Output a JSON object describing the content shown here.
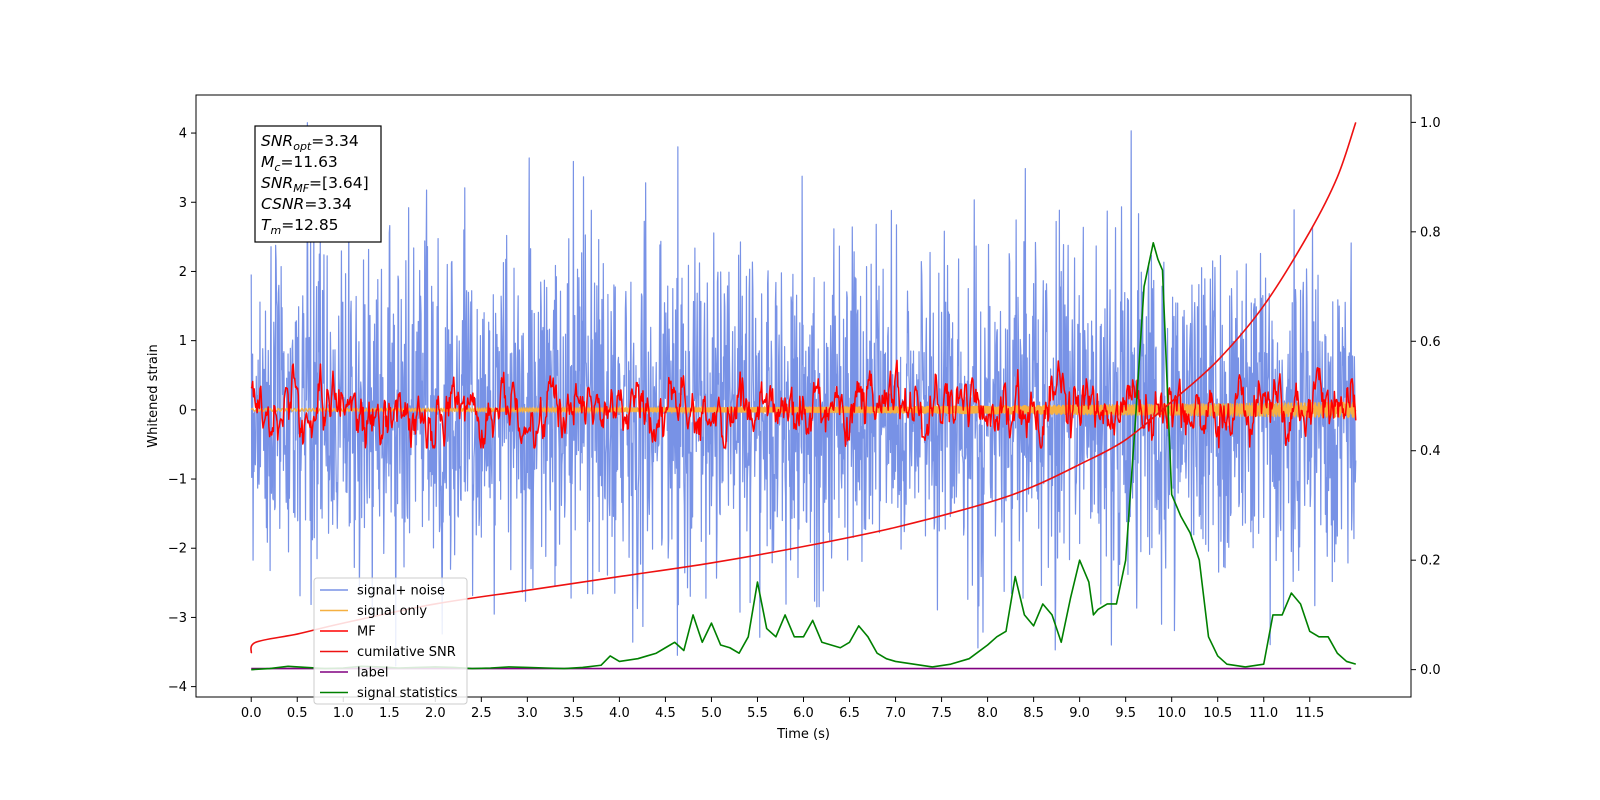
{
  "chart_data": {
    "type": "line",
    "xlabel": "Time (s)",
    "ylabel": "Whitened strain",
    "xlim": [
      -0.6,
      12.6
    ],
    "ylim": [
      -4.15,
      4.55
    ],
    "y2lim": [
      -0.05,
      1.05
    ],
    "x_ticks": [
      0.0,
      0.5,
      1.0,
      1.5,
      2.0,
      2.5,
      3.0,
      3.5,
      4.0,
      4.5,
      5.0,
      5.5,
      6.0,
      6.5,
      7.0,
      7.5,
      8.0,
      8.5,
      9.0,
      9.5,
      10.0,
      10.5,
      11.0,
      11.5
    ],
    "x_tick_labels": [
      "0.0",
      "0.5",
      "1.0",
      "1.5",
      "2.0",
      "2.5",
      "3.0",
      "3.5",
      "4.0",
      "4.5",
      "5.0",
      "5.5",
      "6.0",
      "6.5",
      "7.0",
      "7.5",
      "8.0",
      "8.5",
      "9.0",
      "9.5",
      "10.0",
      "10.5",
      "11.0",
      "11.5"
    ],
    "y_ticks": [
      -4,
      -3,
      -2,
      -1,
      0,
      1,
      2,
      3,
      4
    ],
    "y_tick_labels": [
      "−4",
      "−3",
      "−2",
      "−1",
      "0",
      "1",
      "2",
      "3",
      "4"
    ],
    "y2_ticks": [
      0.0,
      0.2,
      0.4,
      0.6,
      0.8,
      1.0
    ],
    "y2_tick_labels": [
      "0.0",
      "0.2",
      "0.4",
      "0.6",
      "0.8",
      "1.0"
    ],
    "grid": false,
    "legend_placement": "lower-left",
    "series": [
      {
        "name": "signal+ noise",
        "axis": "left",
        "color": "#7892e6",
        "style": "dense noise band",
        "x_range": [
          0.0,
          12.0
        ],
        "approx_extent": [
          -3.7,
          4.15
        ]
      },
      {
        "name": "signal only",
        "axis": "left",
        "color": "#f5b041",
        "style": "small chirp near zero",
        "x_range": [
          0.0,
          12.0
        ],
        "approx_amplitude_start": 0.02,
        "approx_amplitude_end": 0.12
      },
      {
        "name": "MF",
        "axis": "left",
        "color": "#ff0000",
        "style": "noisy trace around zero",
        "x_range": [
          0.0,
          12.0
        ],
        "approx_extent": [
          -0.55,
          0.93
        ]
      },
      {
        "name": "cumilative SNR",
        "axis": "right",
        "color": "#ee1111",
        "style": "smooth rising curve",
        "x": [
          0.0,
          0.05,
          0.5,
          1.0,
          2.0,
          3.0,
          4.0,
          5.0,
          6.0,
          7.0,
          8.0,
          8.5,
          9.0,
          9.5,
          10.0,
          10.5,
          11.0,
          11.5,
          11.8,
          12.0
        ],
        "y": [
          0.03,
          0.05,
          0.065,
          0.085,
          0.12,
          0.145,
          0.17,
          0.195,
          0.225,
          0.26,
          0.305,
          0.335,
          0.375,
          0.42,
          0.49,
          0.565,
          0.665,
          0.8,
          0.9,
          1.0
        ]
      },
      {
        "name": "label",
        "axis": "right",
        "color": "#800080",
        "style": "flat line",
        "x": [
          0.0,
          11.95
        ],
        "y": [
          0.002,
          0.002
        ]
      },
      {
        "name": "signal statistics",
        "axis": "right",
        "color": "#008000",
        "style": "line",
        "x": [
          0.0,
          0.2,
          0.4,
          0.6,
          0.8,
          1.0,
          1.2,
          1.4,
          1.6,
          1.8,
          2.0,
          2.2,
          2.4,
          2.6,
          2.8,
          3.0,
          3.2,
          3.4,
          3.6,
          3.8,
          3.9,
          4.0,
          4.2,
          4.3,
          4.4,
          4.5,
          4.6,
          4.7,
          4.8,
          4.9,
          5.0,
          5.1,
          5.2,
          5.3,
          5.4,
          5.5,
          5.6,
          5.7,
          5.8,
          5.9,
          6.0,
          6.1,
          6.2,
          6.3,
          6.4,
          6.5,
          6.6,
          6.7,
          6.8,
          6.9,
          7.0,
          7.2,
          7.4,
          7.6,
          7.8,
          8.0,
          8.1,
          8.2,
          8.3,
          8.4,
          8.5,
          8.6,
          8.7,
          8.8,
          8.9,
          9.0,
          9.1,
          9.15,
          9.2,
          9.3,
          9.4,
          9.5,
          9.6,
          9.7,
          9.8,
          9.85,
          9.9,
          10.0,
          10.1,
          10.2,
          10.3,
          10.4,
          10.5,
          10.6,
          10.8,
          11.0,
          11.1,
          11.2,
          11.3,
          11.4,
          11.5,
          11.6,
          11.7,
          11.8,
          11.9,
          12.0
        ],
        "y": [
          0.0,
          0.002,
          0.006,
          0.004,
          0.002,
          0.003,
          0.006,
          0.005,
          0.003,
          0.004,
          0.005,
          0.004,
          0.002,
          0.003,
          0.005,
          0.004,
          0.003,
          0.002,
          0.004,
          0.008,
          0.025,
          0.015,
          0.02,
          0.025,
          0.03,
          0.04,
          0.05,
          0.035,
          0.1,
          0.05,
          0.085,
          0.045,
          0.04,
          0.03,
          0.06,
          0.16,
          0.075,
          0.06,
          0.1,
          0.06,
          0.06,
          0.09,
          0.05,
          0.045,
          0.04,
          0.05,
          0.08,
          0.06,
          0.03,
          0.02,
          0.015,
          0.01,
          0.005,
          0.01,
          0.02,
          0.045,
          0.06,
          0.07,
          0.17,
          0.1,
          0.08,
          0.12,
          0.1,
          0.05,
          0.13,
          0.2,
          0.16,
          0.1,
          0.11,
          0.12,
          0.12,
          0.2,
          0.44,
          0.7,
          0.78,
          0.75,
          0.73,
          0.32,
          0.28,
          0.25,
          0.2,
          0.06,
          0.025,
          0.01,
          0.005,
          0.01,
          0.1,
          0.1,
          0.14,
          0.12,
          0.07,
          0.06,
          0.06,
          0.03,
          0.015,
          0.01
        ]
      }
    ],
    "annotation": [
      {
        "base": "SNR",
        "sub": "opt",
        "value": "=3.34"
      },
      {
        "base": "M",
        "sub": "c",
        "value": "=11.63"
      },
      {
        "base": "SNR",
        "sub": "MF",
        "value": "=[3.64]"
      },
      {
        "base": "CSNR",
        "sub": "",
        "value": "=3.34"
      },
      {
        "base": "T",
        "sub": "m",
        "value": "=12.85"
      }
    ]
  }
}
